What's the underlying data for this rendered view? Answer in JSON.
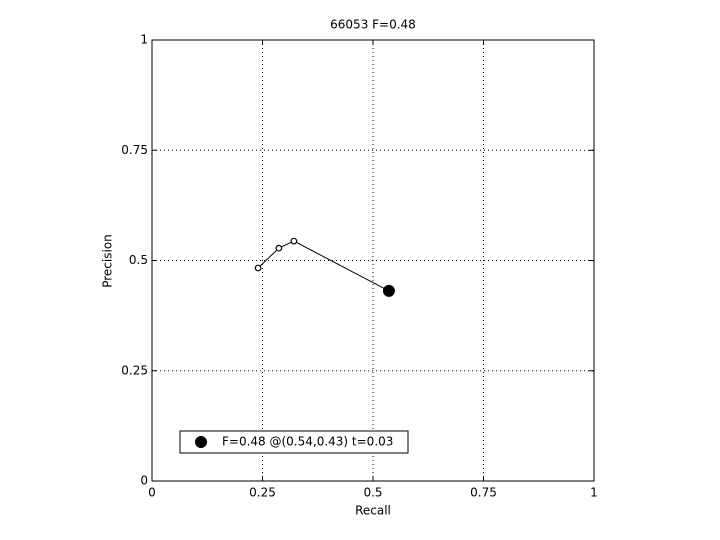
{
  "chart_data": {
    "type": "line",
    "title": "66053 F=0.48",
    "xlabel": "Recall",
    "ylabel": "Precision",
    "xlim": [
      0,
      1
    ],
    "ylim": [
      0,
      1
    ],
    "xticks": [
      0,
      0.25,
      0.5,
      0.75,
      1
    ],
    "yticks": [
      0,
      0.25,
      0.5,
      0.75,
      1
    ],
    "grid": true,
    "legend": "lower left",
    "series": [
      {
        "color": "#000000",
        "x": [
          0.24,
          0.287,
          0.321,
          0.536
        ],
        "values": [
          0.483,
          0.528,
          0.544,
          0.431
        ]
      },
      {
        "name": "F=0.48 @(0.54,0.43) t=0.03",
        "color": "#000000",
        "x": [
          0.536
        ],
        "values": [
          0.431
        ]
      }
    ]
  }
}
